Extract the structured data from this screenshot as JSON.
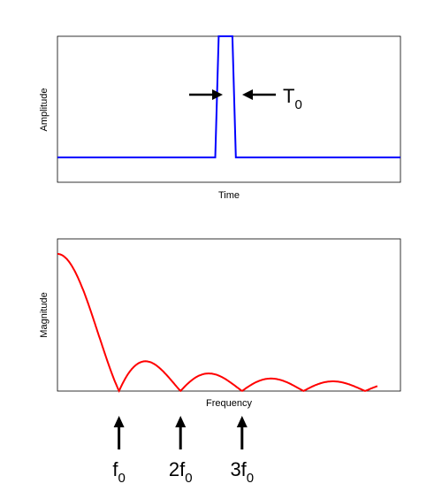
{
  "chart_data": [
    {
      "type": "line",
      "xlabel": "Time",
      "ylabel": "Amplitude",
      "ylim": [
        0,
        1
      ],
      "series": [
        {
          "color": "#0000ff",
          "x": [
            0,
            0.46,
            0.47,
            0.51,
            0.52,
            1.0
          ],
          "y": [
            0.17,
            0.17,
            1.0,
            1.0,
            0.17,
            0.17
          ]
        }
      ],
      "annotation": {
        "text": "T",
        "sub": "0"
      }
    },
    {
      "type": "line",
      "xlabel": "Frequency",
      "ylabel": "Magnitude",
      "function": "|sinc(x)|",
      "x_range": [
        0,
        5.2
      ],
      "zeros_at": [
        1,
        2,
        3,
        4,
        5
      ],
      "series": [
        {
          "color": "#ff0000"
        }
      ],
      "markers": [
        {
          "text": "f",
          "sub": "0",
          "x": 1
        },
        {
          "text": "2f",
          "sub": "0",
          "x": 2
        },
        {
          "text": "3f",
          "sub": "0",
          "x": 3
        }
      ]
    }
  ]
}
